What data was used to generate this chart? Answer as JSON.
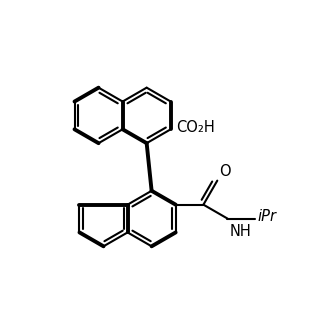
{
  "background_color": "#ffffff",
  "line_color": "#000000",
  "lw": 1.5,
  "blw": 2.8,
  "fs": 10.5,
  "co2h": "CO₂H",
  "o_label": "O",
  "nh_label": "NH",
  "ipr_label": "iPr"
}
